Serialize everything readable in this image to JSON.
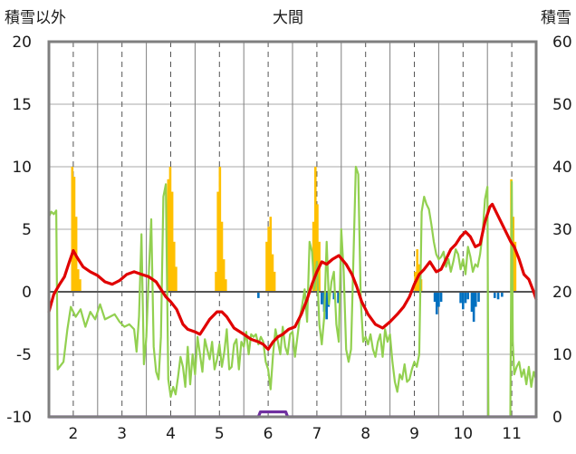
{
  "chart_data": {
    "type": "bar",
    "title": "大間",
    "left_axis_label": "積雪以外",
    "right_axis_label": "積雪",
    "left_ylim": [
      -10,
      20
    ],
    "right_ylim": [
      0,
      60
    ],
    "left_ticks": [
      "20",
      "15",
      "10",
      "5",
      "0",
      "-5",
      "-10"
    ],
    "right_ticks": [
      "60",
      "50",
      "40",
      "30",
      "20",
      "10",
      "0"
    ],
    "xlim": [
      1.5,
      11.5
    ],
    "month_labels": [
      "2",
      "3",
      "4",
      "5",
      "6",
      "7",
      "8",
      "9",
      "10",
      "11"
    ],
    "grid": true,
    "colors": {
      "temperature": "#e00000",
      "sunshine": "#92d050",
      "precip_positive": "#ffc000",
      "precip_negative": "#0070c0",
      "snow": "#7030a0"
    },
    "series_temperature": [
      [
        1.5,
        -1.6
      ],
      [
        1.6,
        -0.2
      ],
      [
        1.72,
        0.6
      ],
      [
        1.82,
        1.2
      ],
      [
        1.92,
        2.4
      ],
      [
        2.0,
        3.3
      ],
      [
        2.07,
        2.8
      ],
      [
        2.2,
        2.0
      ],
      [
        2.35,
        1.6
      ],
      [
        2.5,
        1.3
      ],
      [
        2.65,
        0.8
      ],
      [
        2.8,
        0.6
      ],
      [
        2.95,
        0.9
      ],
      [
        3.1,
        1.4
      ],
      [
        3.25,
        1.6
      ],
      [
        3.4,
        1.4
      ],
      [
        3.55,
        1.2
      ],
      [
        3.7,
        0.8
      ],
      [
        3.8,
        0.2
      ],
      [
        3.9,
        -0.4
      ],
      [
        4.0,
        -0.8
      ],
      [
        4.12,
        -1.4
      ],
      [
        4.25,
        -2.6
      ],
      [
        4.35,
        -3.0
      ],
      [
        4.5,
        -3.2
      ],
      [
        4.6,
        -3.4
      ],
      [
        4.7,
        -2.8
      ],
      [
        4.8,
        -2.2
      ],
      [
        4.95,
        -1.6
      ],
      [
        5.05,
        -1.6
      ],
      [
        5.15,
        -2.0
      ],
      [
        5.3,
        -2.9
      ],
      [
        5.5,
        -3.4
      ],
      [
        5.65,
        -3.8
      ],
      [
        5.8,
        -4.0
      ],
      [
        5.9,
        -4.2
      ],
      [
        6.0,
        -4.6
      ],
      [
        6.1,
        -4.0
      ],
      [
        6.2,
        -3.6
      ],
      [
        6.3,
        -3.4
      ],
      [
        6.42,
        -3.0
      ],
      [
        6.55,
        -2.8
      ],
      [
        6.68,
        -1.8
      ],
      [
        6.8,
        -0.6
      ],
      [
        6.9,
        0.6
      ],
      [
        7.0,
        1.6
      ],
      [
        7.1,
        2.4
      ],
      [
        7.2,
        2.2
      ],
      [
        7.32,
        2.6
      ],
      [
        7.45,
        2.9
      ],
      [
        7.6,
        2.2
      ],
      [
        7.72,
        1.4
      ],
      [
        7.82,
        0.4
      ],
      [
        7.92,
        -0.8
      ],
      [
        8.05,
        -1.8
      ],
      [
        8.2,
        -2.6
      ],
      [
        8.35,
        -2.9
      ],
      [
        8.5,
        -2.4
      ],
      [
        8.65,
        -1.8
      ],
      [
        8.78,
        -1.2
      ],
      [
        8.9,
        -0.4
      ],
      [
        9.0,
        0.6
      ],
      [
        9.1,
        1.4
      ],
      [
        9.2,
        1.8
      ],
      [
        9.32,
        2.4
      ],
      [
        9.45,
        1.6
      ],
      [
        9.55,
        1.8
      ],
      [
        9.65,
        2.6
      ],
      [
        9.75,
        3.4
      ],
      [
        9.85,
        3.8
      ],
      [
        9.95,
        4.4
      ],
      [
        10.05,
        4.8
      ],
      [
        10.15,
        4.4
      ],
      [
        10.25,
        3.6
      ],
      [
        10.35,
        3.8
      ],
      [
        10.45,
        5.6
      ],
      [
        10.55,
        6.8
      ],
      [
        10.6,
        7.0
      ],
      [
        10.98,
        4.0
      ],
      [
        11.05,
        3.6
      ],
      [
        11.15,
        2.6
      ],
      [
        11.25,
        1.4
      ],
      [
        11.35,
        1.0
      ],
      [
        11.45,
        0.0
      ],
      [
        11.5,
        -0.6
      ]
    ],
    "series_sunshine": [
      [
        1.5,
        6.0
      ],
      [
        1.55,
        6.4
      ],
      [
        1.6,
        6.2
      ],
      [
        1.65,
        6.5
      ],
      [
        1.68,
        -6.2
      ],
      [
        1.72,
        -6.0
      ],
      [
        1.8,
        -5.6
      ],
      [
        1.88,
        -3.0
      ],
      [
        1.95,
        -1.2
      ],
      [
        2.05,
        -2.0
      ],
      [
        2.15,
        -1.4
      ],
      [
        2.25,
        -2.8
      ],
      [
        2.35,
        -1.6
      ],
      [
        2.45,
        -2.2
      ],
      [
        2.55,
        -1.0
      ],
      [
        2.65,
        -2.2
      ],
      [
        2.75,
        -2.0
      ],
      [
        2.85,
        -1.8
      ],
      [
        2.95,
        -2.4
      ],
      [
        3.05,
        -2.8
      ],
      [
        3.15,
        -2.6
      ],
      [
        3.25,
        -3.0
      ],
      [
        3.3,
        -4.8
      ],
      [
        3.35,
        -2.0
      ],
      [
        3.4,
        4.6
      ],
      [
        3.45,
        -5.8
      ],
      [
        3.5,
        -3.6
      ],
      [
        3.55,
        1.4
      ],
      [
        3.6,
        5.8
      ],
      [
        3.65,
        -4.4
      ],
      [
        3.7,
        -6.4
      ],
      [
        3.75,
        -7.0
      ],
      [
        3.8,
        -3.6
      ],
      [
        3.85,
        7.6
      ],
      [
        3.9,
        8.6
      ],
      [
        3.95,
        -7.0
      ],
      [
        4.0,
        -8.4
      ],
      [
        4.05,
        -7.6
      ],
      [
        4.1,
        -8.2
      ],
      [
        4.15,
        -6.8
      ],
      [
        4.2,
        -5.2
      ],
      [
        4.25,
        -6.0
      ],
      [
        4.3,
        -7.6
      ],
      [
        4.35,
        -4.4
      ],
      [
        4.4,
        -7.4
      ],
      [
        4.45,
        -5.0
      ],
      [
        4.5,
        -6.6
      ],
      [
        4.55,
        -3.6
      ],
      [
        4.6,
        -5.0
      ],
      [
        4.65,
        -6.4
      ],
      [
        4.7,
        -3.8
      ],
      [
        4.75,
        -4.6
      ],
      [
        4.8,
        -5.4
      ],
      [
        4.85,
        -4.0
      ],
      [
        4.9,
        -6.2
      ],
      [
        4.95,
        -5.4
      ],
      [
        5.0,
        -4.2
      ],
      [
        5.05,
        -6.0
      ],
      [
        5.1,
        -4.8
      ],
      [
        5.15,
        -3.0
      ],
      [
        5.2,
        -6.2
      ],
      [
        5.25,
        -6.0
      ],
      [
        5.3,
        -4.2
      ],
      [
        5.35,
        -3.8
      ],
      [
        5.4,
        -6.2
      ],
      [
        5.45,
        -4.0
      ],
      [
        5.5,
        -4.4
      ],
      [
        5.55,
        -3.2
      ],
      [
        5.6,
        -5.0
      ],
      [
        5.65,
        -3.4
      ],
      [
        5.7,
        -3.6
      ],
      [
        5.75,
        -3.4
      ],
      [
        5.8,
        -4.2
      ],
      [
        5.85,
        -3.6
      ],
      [
        5.9,
        -4.0
      ],
      [
        5.95,
        -5.6
      ],
      [
        6.0,
        -6.2
      ],
      [
        6.05,
        -7.8
      ],
      [
        6.1,
        -5.0
      ],
      [
        6.15,
        -3.0
      ],
      [
        6.2,
        -4.0
      ],
      [
        6.25,
        -5.0
      ],
      [
        6.3,
        -2.8
      ],
      [
        6.35,
        -4.4
      ],
      [
        6.4,
        -5.0
      ],
      [
        6.45,
        -3.4
      ],
      [
        6.5,
        -3.2
      ],
      [
        6.55,
        -5.2
      ],
      [
        6.6,
        -3.6
      ],
      [
        6.65,
        -2.0
      ],
      [
        6.7,
        -1.0
      ],
      [
        6.75,
        0.2
      ],
      [
        6.8,
        -2.4
      ],
      [
        6.85,
        4.0
      ],
      [
        6.9,
        3.2
      ],
      [
        6.95,
        0.2
      ],
      [
        7.0,
        2.4
      ],
      [
        7.05,
        -2.6
      ],
      [
        7.1,
        -4.2
      ],
      [
        7.15,
        -2.0
      ],
      [
        7.2,
        4.0
      ],
      [
        7.25,
        -1.0
      ],
      [
        7.3,
        0.8
      ],
      [
        7.35,
        1.6
      ],
      [
        7.4,
        -2.6
      ],
      [
        7.45,
        -4.0
      ],
      [
        7.5,
        5.0
      ],
      [
        7.55,
        1.6
      ],
      [
        7.6,
        -4.6
      ],
      [
        7.65,
        -5.6
      ],
      [
        7.7,
        -4.6
      ],
      [
        7.75,
        2.8
      ],
      [
        7.8,
        10.0
      ],
      [
        7.85,
        9.4
      ],
      [
        7.9,
        -0.6
      ],
      [
        7.95,
        -4.0
      ],
      [
        8.0,
        -3.6
      ],
      [
        8.05,
        -4.2
      ],
      [
        8.1,
        -3.4
      ],
      [
        8.15,
        -4.6
      ],
      [
        8.2,
        -5.2
      ],
      [
        8.25,
        -4.0
      ],
      [
        8.3,
        -3.4
      ],
      [
        8.35,
        -5.2
      ],
      [
        8.4,
        -3.0
      ],
      [
        8.45,
        -4.0
      ],
      [
        8.5,
        -3.4
      ],
      [
        8.55,
        -5.6
      ],
      [
        8.6,
        -7.2
      ],
      [
        8.65,
        -8.0
      ],
      [
        8.7,
        -6.6
      ],
      [
        8.75,
        -7.0
      ],
      [
        8.8,
        -5.8
      ],
      [
        8.85,
        -7.2
      ],
      [
        8.9,
        -7.0
      ],
      [
        8.95,
        -6.2
      ],
      [
        9.0,
        -5.6
      ],
      [
        9.05,
        -6.0
      ],
      [
        9.1,
        -5.0
      ],
      [
        9.15,
        6.4
      ],
      [
        9.2,
        7.6
      ],
      [
        9.25,
        7.0
      ],
      [
        9.3,
        6.6
      ],
      [
        9.35,
        5.4
      ],
      [
        9.4,
        4.0
      ],
      [
        9.45,
        3.0
      ],
      [
        9.5,
        2.6
      ],
      [
        9.55,
        2.8
      ],
      [
        9.6,
        3.2
      ],
      [
        9.65,
        2.0
      ],
      [
        9.7,
        2.6
      ],
      [
        9.75,
        1.6
      ],
      [
        9.8,
        2.4
      ],
      [
        9.85,
        3.4
      ],
      [
        9.9,
        3.0
      ],
      [
        9.95,
        1.8
      ],
      [
        10.0,
        2.6
      ],
      [
        10.05,
        1.4
      ],
      [
        10.1,
        3.6
      ],
      [
        10.15,
        2.8
      ],
      [
        10.2,
        1.6
      ],
      [
        10.25,
        2.2
      ],
      [
        10.3,
        2.0
      ],
      [
        10.35,
        3.0
      ],
      [
        10.4,
        4.6
      ],
      [
        10.45,
        7.4
      ],
      [
        10.5,
        8.4
      ],
      [
        10.52,
        -10.0
      ],
      [
        10.97,
        -10.0
      ],
      [
        11.0,
        8.8
      ],
      [
        11.02,
        -4.0
      ],
      [
        11.05,
        -6.6
      ],
      [
        11.1,
        -6.0
      ],
      [
        11.15,
        -5.6
      ],
      [
        11.2,
        -6.8
      ],
      [
        11.25,
        -6.2
      ],
      [
        11.3,
        -7.4
      ],
      [
        11.35,
        -6.0
      ],
      [
        11.4,
        -7.6
      ],
      [
        11.45,
        -6.4
      ],
      [
        11.5,
        -7.0
      ]
    ],
    "precip_bars": [
      [
        1.98,
        10.0
      ],
      [
        2.02,
        9.2
      ],
      [
        2.06,
        6.0
      ],
      [
        2.1,
        1.8
      ],
      [
        2.14,
        1.0
      ],
      [
        3.95,
        9.0
      ],
      [
        3.99,
        10.0
      ],
      [
        4.03,
        8.0
      ],
      [
        4.07,
        4.0
      ],
      [
        4.11,
        2.0
      ],
      [
        4.93,
        1.6
      ],
      [
        4.97,
        8.0
      ],
      [
        5.01,
        10.0
      ],
      [
        5.05,
        5.6
      ],
      [
        5.09,
        2.6
      ],
      [
        5.13,
        1.0
      ],
      [
        5.97,
        4.0
      ],
      [
        6.01,
        5.2
      ],
      [
        6.05,
        6.0
      ],
      [
        6.09,
        3.0
      ],
      [
        6.13,
        1.6
      ],
      [
        6.93,
        5.6
      ],
      [
        6.97,
        10.0
      ],
      [
        7.01,
        7.0
      ],
      [
        7.05,
        4.0
      ],
      [
        9.02,
        1.6
      ],
      [
        9.06,
        3.4
      ],
      [
        9.1,
        2.2
      ],
      [
        9.14,
        1.0
      ],
      [
        10.99,
        9.0
      ],
      [
        11.03,
        6.0
      ],
      [
        11.07,
        4.0
      ],
      [
        5.8,
        -0.5
      ],
      [
        7.1,
        -1.0
      ],
      [
        7.15,
        -1.6
      ],
      [
        7.2,
        -2.2
      ],
      [
        7.24,
        -1.2
      ],
      [
        7.35,
        -0.6
      ],
      [
        7.44,
        -0.9
      ],
      [
        9.42,
        -0.8
      ],
      [
        9.46,
        -1.8
      ],
      [
        9.5,
        -1.2
      ],
      [
        9.55,
        -0.8
      ],
      [
        9.95,
        -0.9
      ],
      [
        10.0,
        -1.4
      ],
      [
        10.05,
        -0.9
      ],
      [
        10.1,
        -0.6
      ],
      [
        10.18,
        -1.6
      ],
      [
        10.22,
        -2.4
      ],
      [
        10.26,
        -1.2
      ],
      [
        10.32,
        -0.8
      ],
      [
        10.65,
        -0.5
      ],
      [
        10.72,
        -0.6
      ],
      [
        10.8,
        -0.4
      ]
    ],
    "series_snow": [
      [
        1.5,
        0
      ],
      [
        5.8,
        0
      ],
      [
        5.84,
        0.8
      ],
      [
        6.36,
        0.8
      ],
      [
        6.4,
        0
      ],
      [
        11.5,
        0
      ]
    ]
  }
}
